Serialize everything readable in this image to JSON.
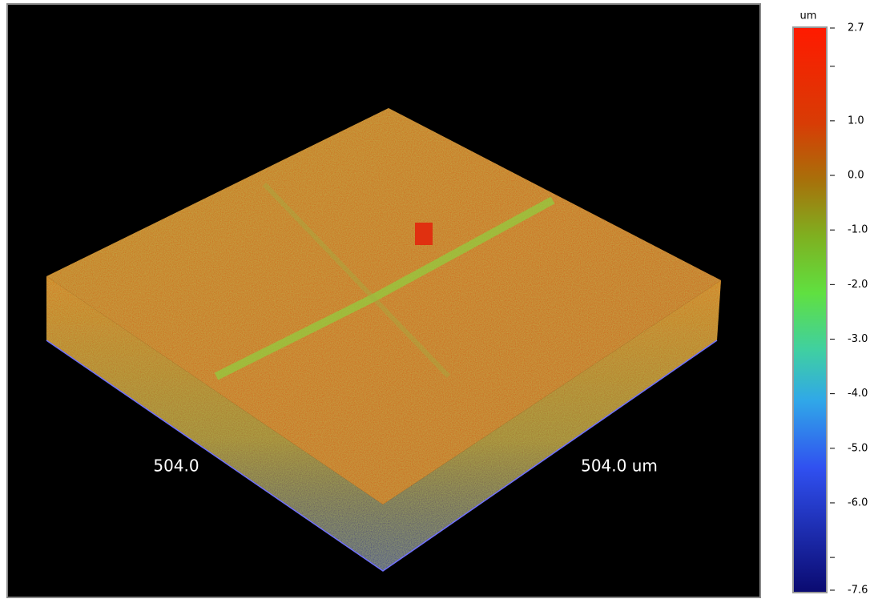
{
  "axes": {
    "x_label": "504.0",
    "y_label": "504.0 um"
  },
  "colorbar": {
    "unit": "um",
    "range": [
      -7.6,
      2.7
    ],
    "ticks": [
      {
        "value": 2.7,
        "label": "2.7"
      },
      {
        "value": 1.0,
        "label": "1.0"
      },
      {
        "value": 0.0,
        "label": "0.0"
      },
      {
        "value": -1.0,
        "label": "-1.0"
      },
      {
        "value": -2.0,
        "label": "-2.0"
      },
      {
        "value": -3.0,
        "label": "-3.0"
      },
      {
        "value": -4.0,
        "label": "-4.0"
      },
      {
        "value": -5.0,
        "label": "-5.0"
      },
      {
        "value": -6.0,
        "label": "-6.0"
      },
      {
        "value": -7.6,
        "label": "-7.6"
      }
    ],
    "minor_ticks": [
      2,
      -7
    ]
  }
}
